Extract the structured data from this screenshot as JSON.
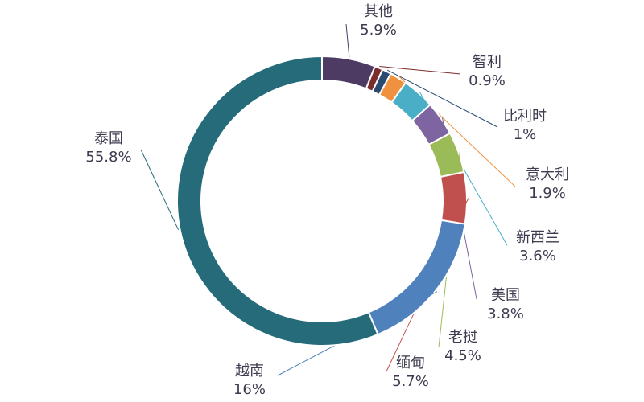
{
  "chart_data": {
    "type": "donut",
    "categories": [
      "其他",
      "智利",
      "比利时",
      "意大利",
      "新西兰",
      "美国",
      "老挝",
      "缅甸",
      "越南",
      "泰国"
    ],
    "values": [
      5.9,
      0.9,
      1,
      1.9,
      3.6,
      3.8,
      4.5,
      5.7,
      16,
      55.8
    ],
    "value_labels": [
      "5.9%",
      "0.9%",
      "1%",
      "1.9%",
      "3.6%",
      "3.8%",
      "4.5%",
      "5.7%",
      "16%",
      "55.8%"
    ],
    "colors": [
      "#4e3b63",
      "#7b2c2c",
      "#2b4a72",
      "#f0913f",
      "#4aaec6",
      "#7e64a0",
      "#9bbb59",
      "#c0504d",
      "#4f81bd",
      "#256b7a"
    ]
  }
}
